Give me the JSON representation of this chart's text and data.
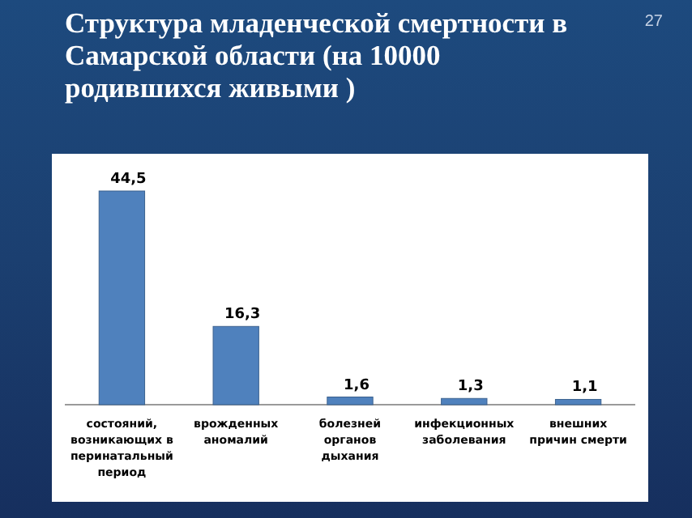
{
  "chart_data": {
    "type": "bar",
    "title": "Структура младенческой смертности в Самарской области (на 10000 родившихся живыми )",
    "categories": [
      "состояний, возникающих в перинатальный период",
      "врожденных аномалий",
      "болезней органов дыхания",
      "инфекционных заболевания",
      "внешних причин смерти"
    ],
    "values": [
      44.5,
      16.3,
      1.6,
      1.3,
      1.1
    ],
    "value_labels": [
      "44,5",
      "16,3",
      "1,6",
      "1,3",
      "1,1"
    ],
    "color": "#4f81bd",
    "annotations": [
      "27"
    ]
  }
}
